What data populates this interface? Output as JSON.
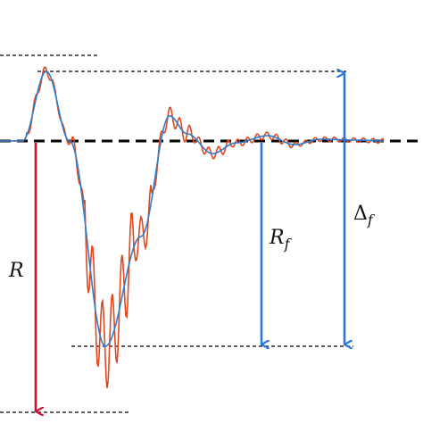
{
  "labels": {
    "R": "R",
    "R_f_main": "R",
    "R_f_sub": "f",
    "delta_f_main": "Δ",
    "delta_f_sub": "f"
  },
  "colors": {
    "background": "#ffffff",
    "baseline": "#000000",
    "guide_lines": "#000000",
    "raw_signal": "#e0481f",
    "smooth_signal": "#2a7fd0",
    "R_arrow": "#cc1133",
    "R_f_arrow": "#2a78e0",
    "delta_f_arrow": "#2a78e0"
  },
  "icons": {
    "arrow_heads": "arrowhead-icon"
  }
}
